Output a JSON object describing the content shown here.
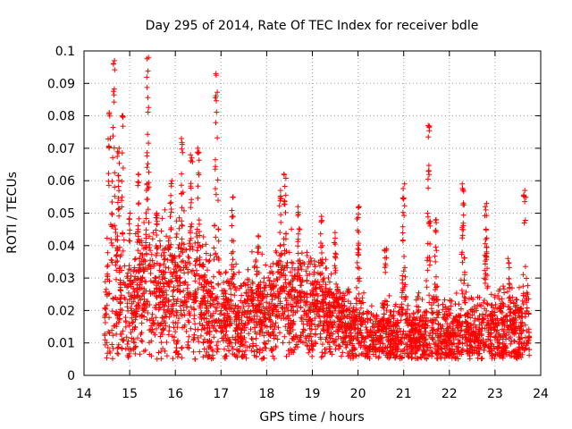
{
  "chart_data": {
    "type": "scatter",
    "title": "Day 295 of 2014, Rate Of TEC Index for receiver bdle",
    "xlabel": "GPS time / hours",
    "ylabel": "ROTI / TECUs",
    "xlim": [
      14,
      24
    ],
    "ylim": [
      0,
      0.1
    ],
    "x_ticks": [
      "14",
      "15",
      "16",
      "17",
      "18",
      "19",
      "20",
      "21",
      "22",
      "23",
      "24"
    ],
    "y_ticks": [
      "0",
      "0.01",
      "0.02",
      "0.03",
      "0.04",
      "0.05",
      "0.06",
      "0.07",
      "0.08",
      "0.09",
      "0.1"
    ],
    "grid": true,
    "marker": "+",
    "series_color": "#ff0000",
    "series": [
      {
        "name": "ROTI",
        "x_range": [
          14.45,
          23.75
        ],
        "envelope": [
          {
            "x": 14.5,
            "base": 0.018,
            "spread": 0.015
          },
          {
            "x": 15.0,
            "base": 0.02,
            "spread": 0.018
          },
          {
            "x": 15.5,
            "base": 0.025,
            "spread": 0.02
          },
          {
            "x": 16.0,
            "base": 0.024,
            "spread": 0.022
          },
          {
            "x": 16.5,
            "base": 0.022,
            "spread": 0.02
          },
          {
            "x": 17.0,
            "base": 0.018,
            "spread": 0.015
          },
          {
            "x": 17.5,
            "base": 0.017,
            "spread": 0.014
          },
          {
            "x": 18.0,
            "base": 0.019,
            "spread": 0.016
          },
          {
            "x": 18.5,
            "base": 0.022,
            "spread": 0.018
          },
          {
            "x": 19.0,
            "base": 0.021,
            "spread": 0.015
          },
          {
            "x": 19.5,
            "base": 0.018,
            "spread": 0.012
          },
          {
            "x": 20.0,
            "base": 0.013,
            "spread": 0.01
          },
          {
            "x": 20.5,
            "base": 0.012,
            "spread": 0.01
          },
          {
            "x": 21.0,
            "base": 0.012,
            "spread": 0.01
          },
          {
            "x": 21.5,
            "base": 0.013,
            "spread": 0.011
          },
          {
            "x": 22.0,
            "base": 0.012,
            "spread": 0.011
          },
          {
            "x": 22.5,
            "base": 0.013,
            "spread": 0.012
          },
          {
            "x": 23.0,
            "base": 0.013,
            "spread": 0.012
          },
          {
            "x": 23.7,
            "base": 0.013,
            "spread": 0.012
          }
        ],
        "peaks": [
          {
            "x": 14.55,
            "value": 0.081
          },
          {
            "x": 14.65,
            "value": 0.097
          },
          {
            "x": 14.75,
            "value": 0.07
          },
          {
            "x": 14.85,
            "value": 0.08
          },
          {
            "x": 15.0,
            "value": 0.05
          },
          {
            "x": 15.2,
            "value": 0.062
          },
          {
            "x": 15.4,
            "value": 0.098
          },
          {
            "x": 15.6,
            "value": 0.05
          },
          {
            "x": 15.9,
            "value": 0.06
          },
          {
            "x": 16.15,
            "value": 0.073
          },
          {
            "x": 16.35,
            "value": 0.068
          },
          {
            "x": 16.5,
            "value": 0.07
          },
          {
            "x": 16.9,
            "value": 0.093
          },
          {
            "x": 17.25,
            "value": 0.055
          },
          {
            "x": 17.8,
            "value": 0.043
          },
          {
            "x": 18.3,
            "value": 0.057
          },
          {
            "x": 18.4,
            "value": 0.062
          },
          {
            "x": 18.7,
            "value": 0.052
          },
          {
            "x": 19.2,
            "value": 0.049
          },
          {
            "x": 19.5,
            "value": 0.044
          },
          {
            "x": 20.0,
            "value": 0.052
          },
          {
            "x": 20.6,
            "value": 0.039
          },
          {
            "x": 21.0,
            "value": 0.059
          },
          {
            "x": 21.55,
            "value": 0.077
          },
          {
            "x": 21.7,
            "value": 0.048
          },
          {
            "x": 22.3,
            "value": 0.059
          },
          {
            "x": 22.8,
            "value": 0.053
          },
          {
            "x": 23.3,
            "value": 0.036
          },
          {
            "x": 23.65,
            "value": 0.057
          }
        ],
        "samples": 3800
      }
    ]
  }
}
